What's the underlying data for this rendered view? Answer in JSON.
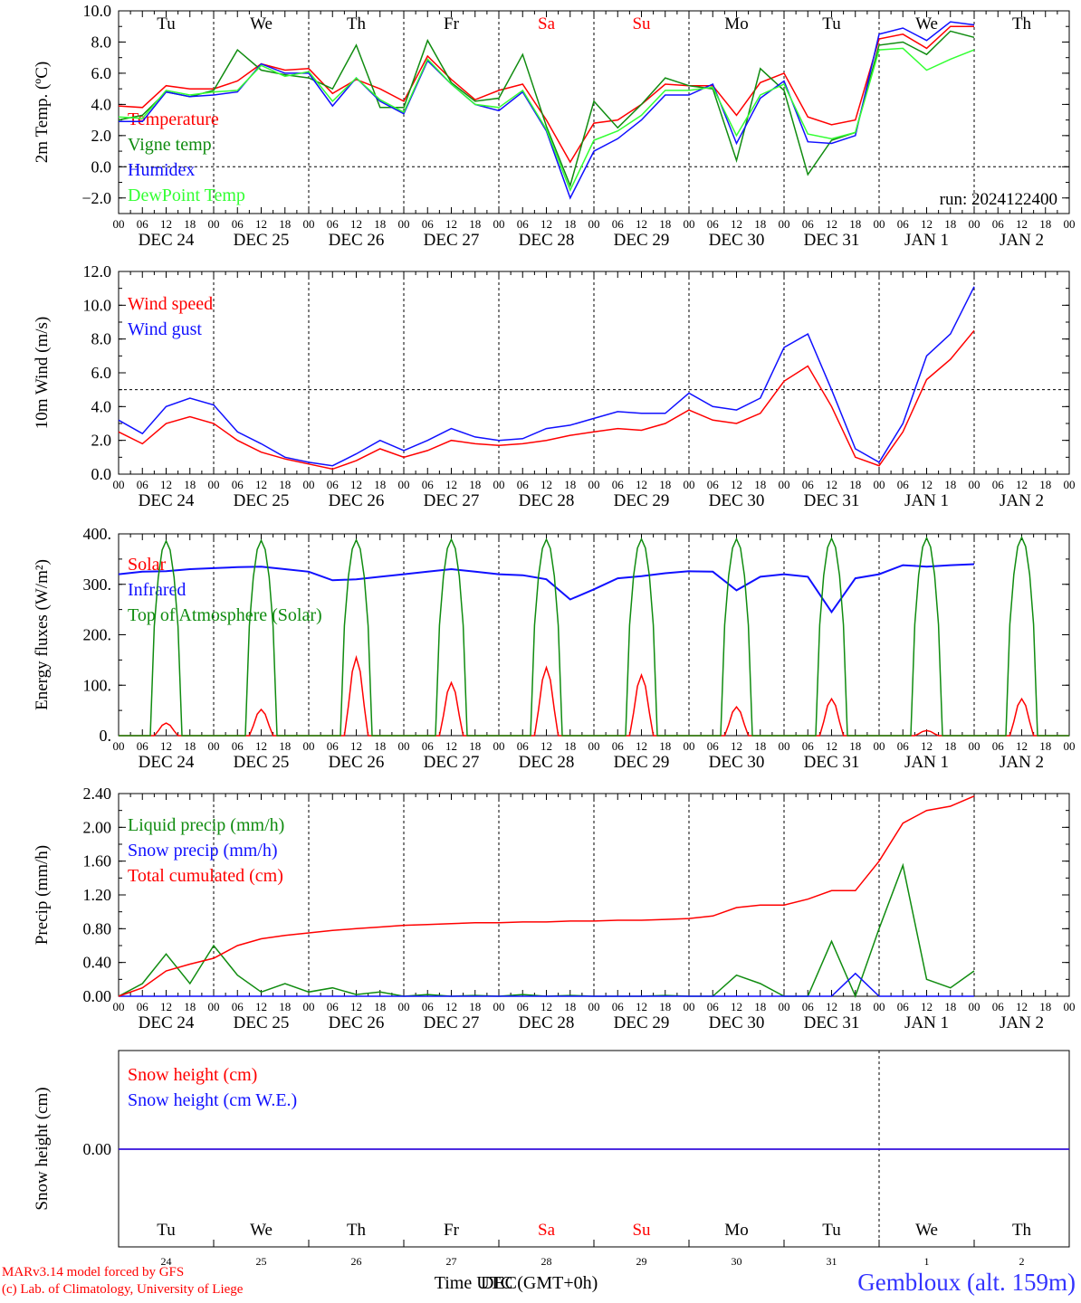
{
  "footer": {
    "credit_line1": "MARv3.14 model forced by GFS",
    "credit_line2": "(c) Lab. of Climatology, University of Liege",
    "location": "Gembloux (alt. 159m)",
    "time_label": "Time UTC (GMT+0h)",
    "month_label": "DEC"
  },
  "colors": {
    "red": "#ff0000",
    "green": "#108c10",
    "blue": "#1010ff",
    "lightgreen": "#33ff33",
    "weekend": "#ff0000",
    "axis": "#000000"
  },
  "days": [
    {
      "wd": "Tu",
      "date": "DEC 24",
      "num": "24",
      "weekend": false
    },
    {
      "wd": "We",
      "date": "DEC 25",
      "num": "25",
      "weekend": false
    },
    {
      "wd": "Th",
      "date": "DEC 26",
      "num": "26",
      "weekend": false
    },
    {
      "wd": "Fr",
      "date": "DEC 27",
      "num": "27",
      "weekend": false
    },
    {
      "wd": "Sa",
      "date": "DEC 28",
      "num": "28",
      "weekend": true
    },
    {
      "wd": "Su",
      "date": "DEC 29",
      "num": "29",
      "weekend": true
    },
    {
      "wd": "Mo",
      "date": "DEC 30",
      "num": "30",
      "weekend": false
    },
    {
      "wd": "Tu",
      "date": "DEC 31",
      "num": "31",
      "weekend": false
    },
    {
      "wd": "We",
      "date": "JAN  1",
      "num": "1",
      "weekend": false
    },
    {
      "wd": "Th",
      "date": "JAN  2",
      "num": "2",
      "weekend": false
    }
  ],
  "hour_ticks": [
    "00",
    "06",
    "12",
    "18"
  ],
  "chart_data": [
    {
      "id": "temp",
      "type": "line",
      "ylabel": "2m Temp. (ºC)",
      "ylim": [
        -3,
        10
      ],
      "yticks": [
        "−2.0",
        "0.0",
        "2.0",
        "4.0",
        "6.0",
        "8.0",
        "10.0"
      ],
      "ytick_values": [
        -2,
        0,
        2,
        4,
        6,
        8,
        10
      ],
      "ref_line": 0,
      "annotation": "run: 2024122400",
      "x_hours_per_point": 6,
      "series": [
        {
          "name": "Temperature",
          "color": "red",
          "values": [
            3.9,
            3.8,
            5.2,
            5.0,
            5.0,
            5.5,
            6.6,
            6.2,
            6.3,
            4.7,
            5.6,
            5.0,
            4.2,
            7.1,
            5.6,
            4.3,
            4.9,
            5.3,
            3.0,
            0.3,
            2.8,
            3.0,
            4.0,
            5.3,
            5.2,
            5.2,
            3.3,
            5.4,
            6.0,
            3.2,
            2.7,
            3.0,
            8.2,
            8.5,
            7.6,
            9.0,
            9.0
          ]
        },
        {
          "name": "Vigne temp",
          "color": "green",
          "values": [
            3.0,
            3.3,
            4.8,
            4.5,
            4.9,
            7.5,
            6.2,
            5.9,
            5.7,
            5.0,
            7.8,
            3.8,
            3.8,
            8.1,
            5.4,
            4.2,
            4.4,
            7.2,
            2.6,
            -1.2,
            4.2,
            2.5,
            4.0,
            5.7,
            5.2,
            5.0,
            0.4,
            6.3,
            4.9,
            -0.5,
            1.7,
            2.2,
            7.8,
            8.0,
            7.2,
            8.7,
            8.3
          ]
        },
        {
          "name": "Humidex",
          "color": "blue",
          "values": [
            2.9,
            2.9,
            4.8,
            4.5,
            4.6,
            4.8,
            6.6,
            6.0,
            6.0,
            3.9,
            5.7,
            4.2,
            3.4,
            6.8,
            5.3,
            4.0,
            3.6,
            4.8,
            2.3,
            -2.0,
            1.0,
            1.8,
            3.0,
            4.6,
            4.6,
            5.3,
            1.5,
            4.4,
            5.5,
            1.6,
            1.5,
            2.0,
            8.5,
            8.9,
            8.1,
            9.3,
            9.1
          ]
        },
        {
          "name": "DewPoint Temp",
          "color": "lightgreen",
          "values": [
            3.2,
            3.1,
            4.9,
            4.6,
            4.8,
            4.9,
            6.5,
            5.8,
            6.1,
            4.2,
            5.7,
            4.3,
            3.5,
            6.9,
            5.3,
            4.0,
            3.8,
            4.9,
            2.4,
            -1.5,
            1.7,
            2.3,
            3.3,
            4.9,
            4.9,
            5.1,
            2.0,
            4.6,
            5.3,
            2.1,
            1.8,
            2.2,
            7.5,
            7.6,
            6.2,
            6.9,
            7.5
          ]
        }
      ]
    },
    {
      "id": "wind",
      "type": "line",
      "ylabel": "10m Wind (m/s)",
      "ylim": [
        0,
        12
      ],
      "yticks": [
        "0.0",
        "2.0",
        "4.0",
        "6.0",
        "8.0",
        "10.0",
        "12.0"
      ],
      "ytick_values": [
        0,
        2,
        4,
        6,
        8,
        10,
        12
      ],
      "ref_line": 5,
      "x_hours_per_point": 6,
      "series": [
        {
          "name": "Wind speed",
          "color": "red",
          "values": [
            2.5,
            1.8,
            3.0,
            3.4,
            3.0,
            2.0,
            1.3,
            0.9,
            0.6,
            0.3,
            0.8,
            1.5,
            1.0,
            1.4,
            2.0,
            1.8,
            1.7,
            1.8,
            2.0,
            2.3,
            2.5,
            2.7,
            2.6,
            3.0,
            3.8,
            3.2,
            3.0,
            3.6,
            5.5,
            6.4,
            4.0,
            1.0,
            0.5,
            2.5,
            5.6,
            6.8,
            8.5
          ]
        },
        {
          "name": "Wind gust",
          "color": "blue",
          "values": [
            3.2,
            2.4,
            4.0,
            4.5,
            4.1,
            2.5,
            1.8,
            1.0,
            0.7,
            0.5,
            1.2,
            2.0,
            1.4,
            2.0,
            2.7,
            2.2,
            2.0,
            2.1,
            2.7,
            2.9,
            3.3,
            3.7,
            3.6,
            3.6,
            4.8,
            4.0,
            3.8,
            4.5,
            7.5,
            8.3,
            5.0,
            1.5,
            0.7,
            3.0,
            7.0,
            8.3,
            11.1
          ]
        }
      ]
    },
    {
      "id": "energy",
      "type": "line",
      "ylabel": "Energy fluxes (W/m²)",
      "ylim": [
        0,
        400
      ],
      "yticks": [
        "0.",
        "100.",
        "200.",
        "300.",
        "400."
      ],
      "ytick_values": [
        0,
        100,
        200,
        300,
        400
      ],
      "x_hours_per_point": 6,
      "series": [
        {
          "name": "Solar",
          "color": "red",
          "daily_peaks": [
            25,
            52,
            155,
            105,
            135,
            120,
            57,
            73,
            10,
            73
          ]
        },
        {
          "name": "Infrared",
          "color": "blue",
          "values": [
            320,
            325,
            326,
            330,
            332,
            334,
            335,
            330,
            325,
            308,
            310,
            315,
            320,
            325,
            330,
            325,
            320,
            318,
            310,
            270,
            290,
            312,
            316,
            322,
            326,
            325,
            288,
            315,
            320,
            315,
            245,
            312,
            320,
            338,
            335,
            338,
            340
          ]
        },
        {
          "name": "Top of Atmosphere (Solar)",
          "color": "green",
          "daily_peaks": [
            386,
            387,
            388,
            389,
            389,
            390,
            390,
            391,
            392,
            393
          ]
        }
      ]
    },
    {
      "id": "precip",
      "type": "line",
      "ylabel": "Precip (mm/h)",
      "ylim": [
        0,
        2.4
      ],
      "yticks": [
        "0.00",
        "0.40",
        "0.80",
        "1.20",
        "1.60",
        "2.00",
        "2.40"
      ],
      "ytick_values": [
        0,
        0.4,
        0.8,
        1.2,
        1.6,
        2.0,
        2.4
      ],
      "x_hours_per_point": 6,
      "series": [
        {
          "name": "Liquid precip (mm/h)",
          "color": "green",
          "values": [
            0.0,
            0.15,
            0.5,
            0.15,
            0.6,
            0.25,
            0.05,
            0.15,
            0.05,
            0.1,
            0.02,
            0.05,
            0.0,
            0.02,
            0.0,
            0.01,
            0.0,
            0.02,
            0.0,
            0.01,
            0.0,
            0.0,
            0.0,
            0.01,
            0.0,
            0.0,
            0.25,
            0.15,
            0.0,
            0.0,
            0.65,
            0.0,
            0.8,
            1.55,
            0.2,
            0.1,
            0.3
          ]
        },
        {
          "name": "Snow precip (mm/h)",
          "color": "blue",
          "values": [
            0,
            0,
            0,
            0,
            0,
            0,
            0,
            0,
            0,
            0,
            0,
            0,
            0,
            0,
            0,
            0,
            0,
            0,
            0,
            0,
            0,
            0,
            0,
            0,
            0,
            0,
            0,
            0,
            0,
            0,
            0,
            0.27,
            0,
            0,
            0,
            0,
            0
          ]
        },
        {
          "name": "Total cumulated (cm)",
          "color": "red",
          "values": [
            0.0,
            0.1,
            0.3,
            0.38,
            0.45,
            0.6,
            0.68,
            0.72,
            0.75,
            0.78,
            0.8,
            0.82,
            0.84,
            0.85,
            0.86,
            0.87,
            0.87,
            0.88,
            0.88,
            0.89,
            0.89,
            0.9,
            0.9,
            0.91,
            0.92,
            0.95,
            1.05,
            1.08,
            1.08,
            1.15,
            1.25,
            1.25,
            1.6,
            2.05,
            2.2,
            2.25,
            2.37
          ]
        }
      ]
    },
    {
      "id": "snow",
      "type": "line",
      "ylabel": "Snow height (cm)",
      "yticks": [
        "0.00"
      ],
      "ytick_values": [
        0
      ],
      "x_hours_per_point": 6,
      "series": [
        {
          "name": "Snow height (cm)",
          "color": "red",
          "values": [
            0,
            0
          ]
        },
        {
          "name": "Snow height (cm W.E.)",
          "color": "blue",
          "values": [
            0,
            0
          ]
        }
      ]
    }
  ]
}
